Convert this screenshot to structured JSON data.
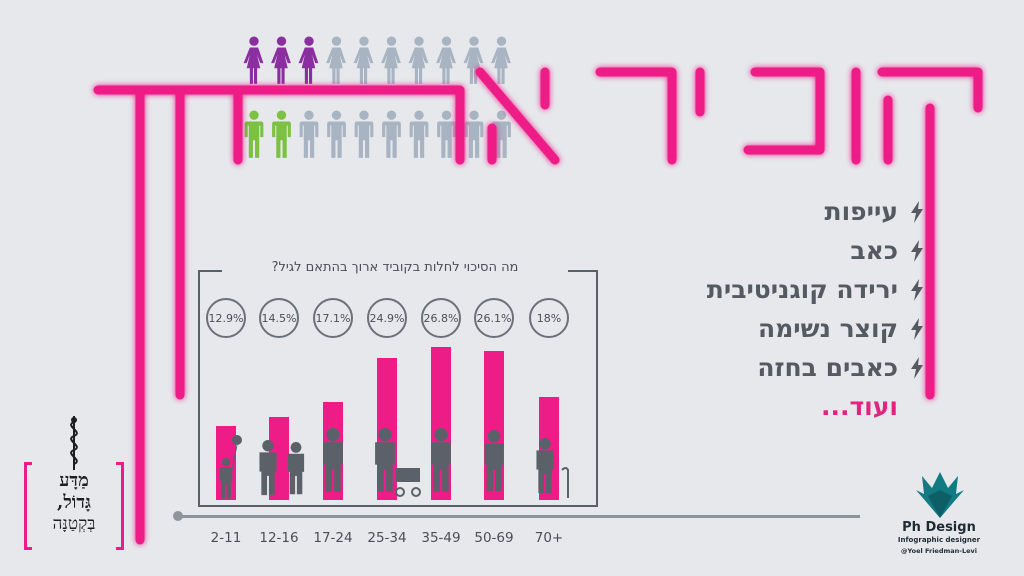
{
  "title": "קוביד ארוך",
  "icon_rows": {
    "top": {
      "highlighted": 3,
      "total": 10,
      "highlight_color": "#8b2fa0",
      "base_color": "#a8b4c2"
    },
    "bottom": {
      "highlighted": 2,
      "total": 10,
      "highlight_color": "#7cc142",
      "base_color": "#a8b4c2"
    }
  },
  "symptoms": [
    "עייפות",
    "כאב",
    "ירידה קוגניטיבית",
    "קוצר נשימה",
    "כאבים בחזה"
  ],
  "symptoms_more": "ועוד...",
  "chart_data": {
    "type": "bar",
    "title": "מה הסיכוי לחלות בקוביד ארוך בהתאם לגיל?",
    "categories": [
      "2-11",
      "12-16",
      "17-24",
      "25-34",
      "35-49",
      "50-69",
      "70+"
    ],
    "values": [
      12.9,
      14.5,
      17.1,
      24.9,
      26.8,
      26.1,
      18
    ],
    "value_labels": [
      "12.9%",
      "14.5%",
      "17.1%",
      "24.9%",
      "26.8%",
      "26.1%",
      "18%"
    ],
    "bar_color": "#ee1c87",
    "figure_color": "#5b6169",
    "ylim": [
      0,
      28
    ]
  },
  "logo": {
    "line1": "מַדָּע",
    "line2": "גָּדוֹל,",
    "line3": "בְּקְטַנָּה"
  },
  "designer": {
    "name": "Ph Design",
    "subtitle": "Infographic designer",
    "handle": "@Yoel Friedman-Levi"
  },
  "colors": {
    "accent": "#ee1c87",
    "background": "#e6e8ec",
    "text": "#555a62"
  }
}
